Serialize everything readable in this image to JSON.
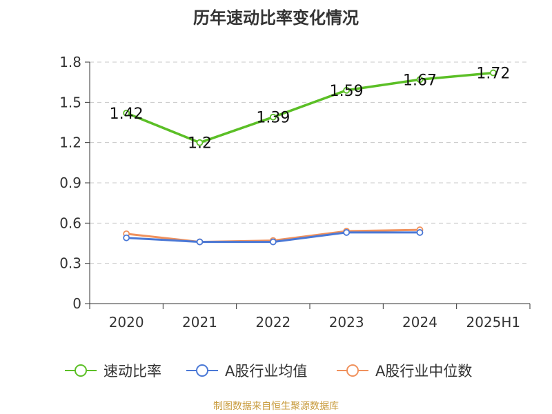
{
  "chart_data": {
    "type": "line",
    "title": "历年速动比率变化情况",
    "categories": [
      "2020",
      "2021",
      "2022",
      "2023",
      "2024",
      "2025H1"
    ],
    "y_ticks": [
      "0",
      "0.3",
      "0.6",
      "0.9",
      "1.2",
      "1.5",
      "1.8"
    ],
    "ylim": [
      0,
      1.8
    ],
    "series": [
      {
        "name": "速动比率",
        "color": "#5bbf26",
        "values": [
          1.42,
          1.2,
          1.39,
          1.59,
          1.67,
          1.72
        ],
        "labels": [
          "1.42",
          "1.2",
          "1.39",
          "1.59",
          "1.67",
          "1.72"
        ]
      },
      {
        "name": "A股行业均值",
        "color": "#4a78d6",
        "values": [
          0.49,
          0.46,
          0.46,
          0.53,
          0.53,
          null
        ]
      },
      {
        "name": "A股行业中位数",
        "color": "#f0915c",
        "values": [
          0.52,
          0.46,
          0.47,
          0.54,
          0.55,
          null
        ]
      }
    ],
    "legend_position": "bottom",
    "grid": true
  },
  "footer": {
    "credit": "制图数据来自恒生聚源数据库"
  }
}
